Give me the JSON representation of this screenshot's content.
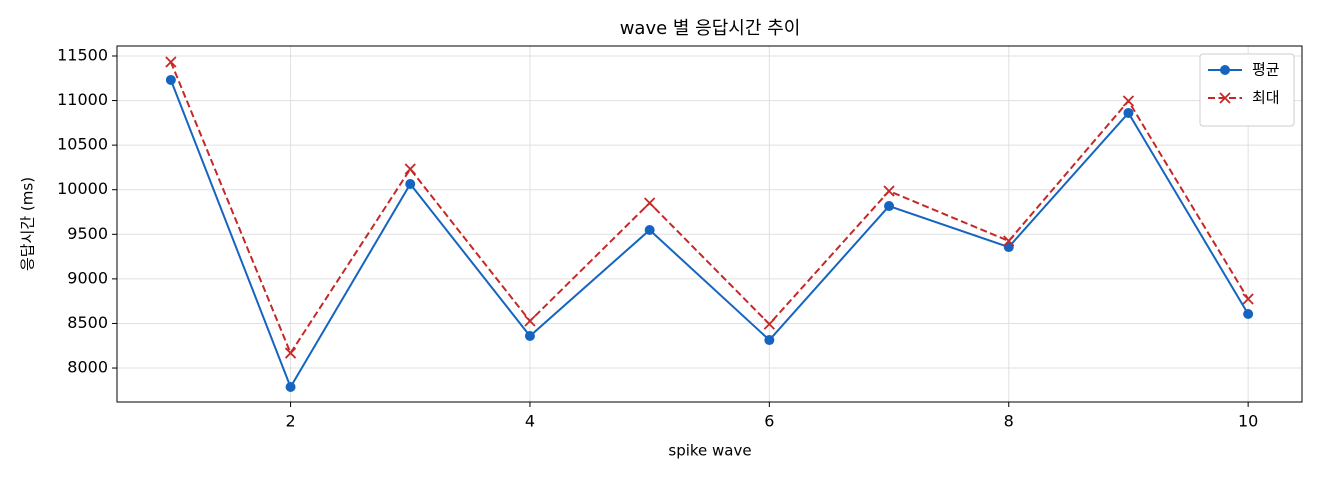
{
  "chart_data": {
    "type": "line",
    "title": "wave 별 응답시간 추이",
    "x_label": "spike wave",
    "y_label": "응답시간 (ms)",
    "x": [
      1,
      2,
      3,
      4,
      5,
      6,
      7,
      8,
      9,
      10
    ],
    "series": [
      {
        "name": "평균",
        "color": "#1565c0",
        "marker": "o",
        "linestyle": "solid",
        "values": [
          11231,
          7787,
          10064,
          8359,
          9548,
          8314,
          9817,
          9357,
          10861,
          8606
        ]
      },
      {
        "name": "최대",
        "color": "#c62828",
        "marker": "x",
        "linestyle": "dashed",
        "values": [
          11433,
          8168,
          10232,
          8527,
          9851,
          8493,
          9985,
          9425,
          10995,
          8774
        ]
      }
    ],
    "xlim": [
      0.55,
      10.45
    ],
    "ylim": [
      7619,
      11612
    ],
    "xticks": [
      2,
      4,
      6,
      8,
      10
    ],
    "yticks": [
      8000,
      8500,
      9000,
      9500,
      10000,
      10500,
      11000,
      11500
    ],
    "grid": true,
    "legend": "upper right"
  }
}
